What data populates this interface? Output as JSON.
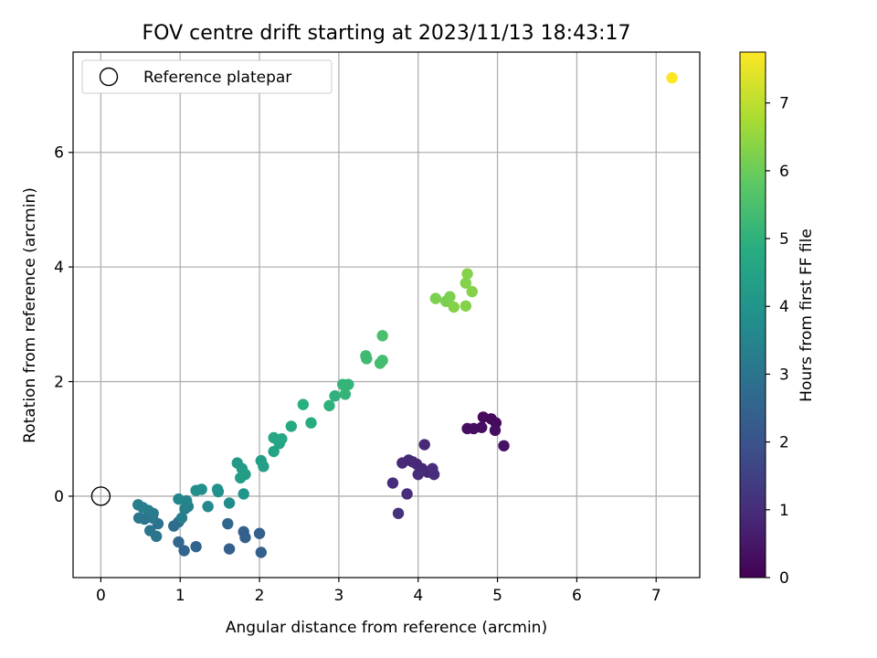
{
  "chart_data": {
    "type": "scatter",
    "title": "FOV centre drift starting at 2023/11/13 18:43:17",
    "xlabel": "Angular distance from reference (arcmin)",
    "ylabel": "Rotation from reference (arcmin)",
    "xlim": [
      -0.35,
      7.55
    ],
    "ylim": [
      -1.42,
      7.75
    ],
    "xticks": [
      0,
      1,
      2,
      3,
      4,
      5,
      6,
      7
    ],
    "yticks": [
      0,
      2,
      4,
      6
    ],
    "grid": true,
    "legend": {
      "position": "top-left",
      "entries": [
        "Reference platepar"
      ]
    },
    "reference_point": {
      "x": 0,
      "y": 0
    },
    "colorbar": {
      "label": "Hours from first FF file",
      "colormap": "viridis",
      "range": [
        0,
        7.75
      ],
      "ticks": [
        0,
        1,
        2,
        3,
        4,
        5,
        6,
        7
      ]
    },
    "series": [
      {
        "points": [
          {
            "x": 4.82,
            "y": 1.38,
            "c": 0.2
          },
          {
            "x": 4.92,
            "y": 1.35,
            "c": 0.2
          },
          {
            "x": 4.98,
            "y": 1.28,
            "c": 0.2
          },
          {
            "x": 4.62,
            "y": 1.18,
            "c": 0.3
          },
          {
            "x": 4.7,
            "y": 1.18,
            "c": 0.3
          },
          {
            "x": 4.8,
            "y": 1.2,
            "c": 0.3
          },
          {
            "x": 4.97,
            "y": 1.15,
            "c": 0.3
          },
          {
            "x": 5.08,
            "y": 0.88,
            "c": 0.4
          },
          {
            "x": 4.08,
            "y": 0.9,
            "c": 0.9
          },
          {
            "x": 3.8,
            "y": 0.58,
            "c": 0.9
          },
          {
            "x": 3.88,
            "y": 0.63,
            "c": 0.9
          },
          {
            "x": 3.93,
            "y": 0.6,
            "c": 0.9
          },
          {
            "x": 3.98,
            "y": 0.56,
            "c": 0.9
          },
          {
            "x": 4.05,
            "y": 0.48,
            "c": 0.9
          },
          {
            "x": 4.12,
            "y": 0.42,
            "c": 0.9
          },
          {
            "x": 4.18,
            "y": 0.48,
            "c": 1.0
          },
          {
            "x": 4.0,
            "y": 0.38,
            "c": 1.0
          },
          {
            "x": 4.2,
            "y": 0.38,
            "c": 1.0
          },
          {
            "x": 3.68,
            "y": 0.23,
            "c": 1.0
          },
          {
            "x": 3.86,
            "y": 0.04,
            "c": 1.0
          },
          {
            "x": 3.75,
            "y": -0.3,
            "c": 1.1
          },
          {
            "x": 2.02,
            "y": -0.98,
            "c": 2.4
          },
          {
            "x": 1.62,
            "y": -0.92,
            "c": 2.4
          },
          {
            "x": 1.2,
            "y": -0.88,
            "c": 2.5
          },
          {
            "x": 1.05,
            "y": -0.95,
            "c": 2.5
          },
          {
            "x": 0.98,
            "y": -0.8,
            "c": 2.6
          },
          {
            "x": 1.8,
            "y": -0.62,
            "c": 2.4
          },
          {
            "x": 1.82,
            "y": -0.72,
            "c": 2.4
          },
          {
            "x": 2.0,
            "y": -0.65,
            "c": 2.4
          },
          {
            "x": 1.6,
            "y": -0.48,
            "c": 2.6
          },
          {
            "x": 0.92,
            "y": -0.52,
            "c": 2.8
          },
          {
            "x": 0.98,
            "y": -0.45,
            "c": 2.8
          },
          {
            "x": 0.72,
            "y": -0.48,
            "c": 2.9
          },
          {
            "x": 0.62,
            "y": -0.6,
            "c": 3.0
          },
          {
            "x": 0.7,
            "y": -0.7,
            "c": 3.0
          },
          {
            "x": 0.55,
            "y": -0.4,
            "c": 3.0
          },
          {
            "x": 0.48,
            "y": -0.38,
            "c": 3.1
          },
          {
            "x": 0.65,
            "y": -0.38,
            "c": 3.1
          },
          {
            "x": 0.6,
            "y": -0.25,
            "c": 3.2
          },
          {
            "x": 0.66,
            "y": -0.3,
            "c": 3.2
          },
          {
            "x": 0.47,
            "y": -0.15,
            "c": 3.3
          },
          {
            "x": 0.53,
            "y": -0.2,
            "c": 3.3
          },
          {
            "x": 1.02,
            "y": -0.38,
            "c": 3.3
          },
          {
            "x": 1.06,
            "y": -0.22,
            "c": 3.4
          },
          {
            "x": 1.1,
            "y": -0.18,
            "c": 3.4
          },
          {
            "x": 0.98,
            "y": -0.05,
            "c": 3.5
          },
          {
            "x": 1.08,
            "y": -0.08,
            "c": 3.5
          },
          {
            "x": 1.35,
            "y": -0.18,
            "c": 3.6
          },
          {
            "x": 1.62,
            "y": -0.12,
            "c": 3.7
          },
          {
            "x": 1.2,
            "y": 0.1,
            "c": 3.8
          },
          {
            "x": 1.27,
            "y": 0.12,
            "c": 3.8
          },
          {
            "x": 1.47,
            "y": 0.12,
            "c": 3.9
          },
          {
            "x": 1.48,
            "y": 0.08,
            "c": 3.9
          },
          {
            "x": 1.8,
            "y": 0.04,
            "c": 4.0
          },
          {
            "x": 1.72,
            "y": 0.58,
            "c": 4.2
          },
          {
            "x": 1.78,
            "y": 0.48,
            "c": 4.2
          },
          {
            "x": 1.82,
            "y": 0.38,
            "c": 4.3
          },
          {
            "x": 1.76,
            "y": 0.32,
            "c": 4.3
          },
          {
            "x": 2.02,
            "y": 0.62,
            "c": 4.4
          },
          {
            "x": 2.05,
            "y": 0.52,
            "c": 4.4
          },
          {
            "x": 2.18,
            "y": 0.78,
            "c": 4.5
          },
          {
            "x": 2.25,
            "y": 0.92,
            "c": 4.5
          },
          {
            "x": 2.18,
            "y": 1.02,
            "c": 4.6
          },
          {
            "x": 2.28,
            "y": 1.0,
            "c": 4.6
          },
          {
            "x": 2.4,
            "y": 1.22,
            "c": 4.7
          },
          {
            "x": 2.65,
            "y": 1.28,
            "c": 4.8
          },
          {
            "x": 2.55,
            "y": 1.6,
            "c": 4.9
          },
          {
            "x": 2.88,
            "y": 1.58,
            "c": 5.0
          },
          {
            "x": 2.95,
            "y": 1.75,
            "c": 5.0
          },
          {
            "x": 3.08,
            "y": 1.78,
            "c": 5.1
          },
          {
            "x": 3.05,
            "y": 1.95,
            "c": 5.1
          },
          {
            "x": 3.12,
            "y": 1.95,
            "c": 5.1
          },
          {
            "x": 3.35,
            "y": 2.4,
            "c": 5.3
          },
          {
            "x": 3.34,
            "y": 2.45,
            "c": 5.3
          },
          {
            "x": 3.52,
            "y": 2.32,
            "c": 5.4
          },
          {
            "x": 3.55,
            "y": 2.37,
            "c": 5.4
          },
          {
            "x": 3.55,
            "y": 2.8,
            "c": 5.5
          },
          {
            "x": 4.22,
            "y": 3.45,
            "c": 6.2
          },
          {
            "x": 4.35,
            "y": 3.4,
            "c": 6.2
          },
          {
            "x": 4.4,
            "y": 3.48,
            "c": 6.2
          },
          {
            "x": 4.45,
            "y": 3.3,
            "c": 6.3
          },
          {
            "x": 4.6,
            "y": 3.32,
            "c": 6.3
          },
          {
            "x": 4.68,
            "y": 3.57,
            "c": 6.3
          },
          {
            "x": 4.6,
            "y": 3.72,
            "c": 6.3
          },
          {
            "x": 4.62,
            "y": 3.88,
            "c": 6.3
          },
          {
            "x": 7.2,
            "y": 7.3,
            "c": 7.75
          }
        ]
      }
    ]
  }
}
